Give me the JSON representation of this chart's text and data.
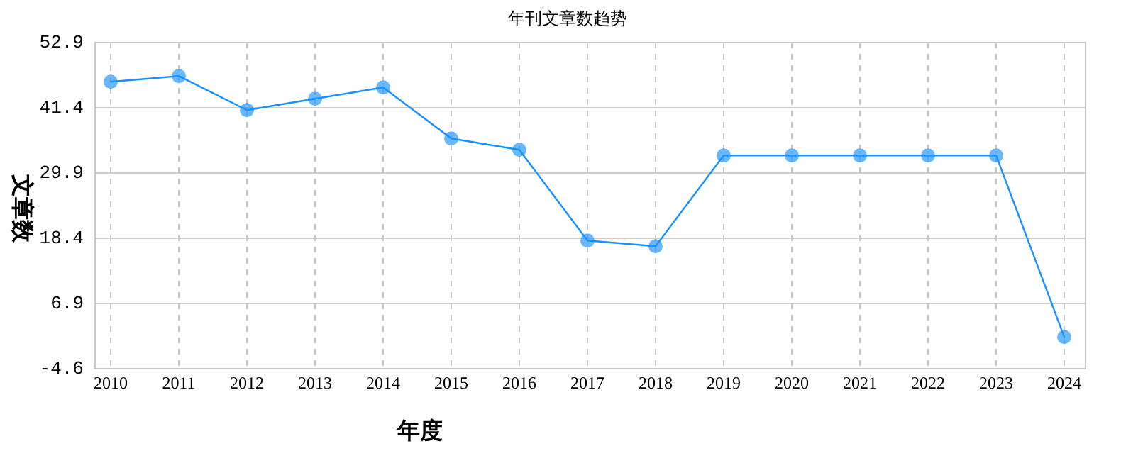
{
  "chart_data": {
    "type": "line",
    "title": "年刊文章数趋势",
    "xlabel": "年度",
    "ylabel": "文章数",
    "categories": [
      "2010",
      "2011",
      "2012",
      "2013",
      "2014",
      "2015",
      "2016",
      "2017",
      "2018",
      "2019",
      "2020",
      "2021",
      "2022",
      "2023",
      "2024"
    ],
    "series": [
      {
        "color": "#1890ff",
        "values": [
          46,
          47,
          41,
          43,
          45,
          36,
          34,
          18,
          17,
          33,
          33,
          33,
          33,
          33,
          1
        ]
      }
    ],
    "ylim": [
      -4.6,
      52.9
    ],
    "yticks": [
      -4.6,
      6.9,
      18.4,
      29.9,
      41.4,
      52.9
    ],
    "grid": true,
    "marker": "circle",
    "line_style": "solid"
  }
}
